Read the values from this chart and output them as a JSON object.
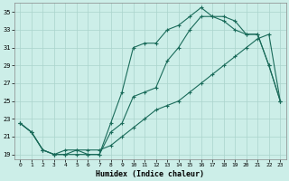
{
  "xlabel": "Humidex (Indice chaleur)",
  "bg_color": "#cceee8",
  "grid_color": "#aad4cc",
  "line_color": "#1a6b5a",
  "xlim": [
    -0.5,
    23.5
  ],
  "ylim": [
    18.5,
    36.0
  ],
  "yticks": [
    19,
    21,
    23,
    25,
    27,
    29,
    31,
    33,
    35
  ],
  "xticks": [
    0,
    1,
    2,
    3,
    4,
    5,
    6,
    7,
    8,
    9,
    10,
    11,
    12,
    13,
    14,
    15,
    16,
    17,
    18,
    19,
    20,
    21,
    22,
    23
  ],
  "line1_x": [
    0,
    1,
    2,
    3,
    4,
    5,
    6,
    7,
    8,
    9,
    10,
    11,
    12,
    13,
    14,
    15,
    16,
    17,
    18,
    19,
    20,
    21,
    22,
    23
  ],
  "line1_y": [
    22.5,
    21.5,
    19.5,
    19.0,
    19.0,
    19.5,
    19.0,
    19.0,
    22.5,
    26.0,
    31.0,
    31.5,
    31.5,
    33.0,
    33.5,
    34.5,
    35.5,
    34.5,
    34.5,
    34.0,
    32.5,
    32.5,
    29.0,
    25.0
  ],
  "line2_x": [
    0,
    1,
    2,
    3,
    4,
    5,
    6,
    7,
    8,
    9,
    10,
    11,
    12,
    13,
    14,
    15,
    16,
    17,
    18,
    19,
    20,
    21,
    22,
    23
  ],
  "line2_y": [
    22.5,
    21.5,
    19.5,
    19.0,
    19.0,
    19.0,
    19.0,
    19.0,
    21.5,
    22.5,
    25.5,
    26.0,
    26.5,
    29.5,
    31.0,
    33.0,
    34.5,
    34.5,
    34.0,
    33.0,
    32.5,
    32.5,
    29.0,
    25.0
  ],
  "line3_x": [
    0,
    1,
    2,
    3,
    4,
    5,
    6,
    7,
    8,
    9,
    10,
    11,
    12,
    13,
    14,
    15,
    16,
    17,
    18,
    19,
    20,
    21,
    22,
    23
  ],
  "line3_y": [
    22.5,
    21.5,
    19.5,
    19.0,
    19.5,
    19.5,
    19.5,
    19.5,
    20.0,
    21.0,
    22.0,
    23.0,
    24.0,
    24.5,
    25.0,
    26.0,
    27.0,
    28.0,
    29.0,
    30.0,
    31.0,
    32.0,
    32.5,
    25.0
  ]
}
